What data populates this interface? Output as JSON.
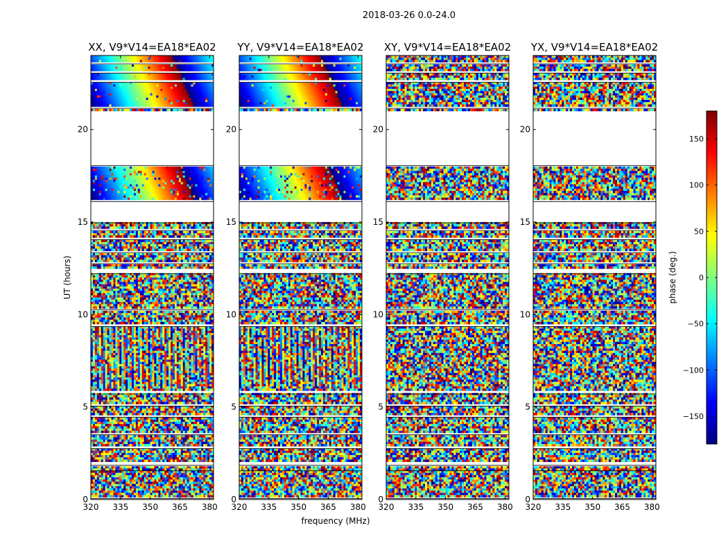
{
  "chart_data": {
    "type": "heatmap",
    "title": "2018-03-26 0.0-24.0",
    "xlabel": "frequency (MHz)",
    "ylabel": "UT (hours)",
    "xlim": [
      320,
      382
    ],
    "ylim": [
      0,
      24
    ],
    "x_ticks": [
      "320",
      "335",
      "350",
      "365",
      "380"
    ],
    "x_tick_values": [
      320,
      335,
      350,
      365,
      380
    ],
    "y_ticks": [
      "0",
      "5",
      "10",
      "15",
      "20"
    ],
    "y_tick_values": [
      0,
      5,
      10,
      15,
      20
    ],
    "colormap": "jet",
    "colorbar": {
      "label": "phase (deg.)",
      "range": [
        -180,
        180
      ],
      "ticks": [
        "-150",
        "-100",
        "-50",
        "0",
        "50",
        "100",
        "150"
      ],
      "tick_values": [
        -150,
        -100,
        -50,
        0,
        50,
        100,
        150
      ]
    },
    "flagged_ut_ranges": [
      [
        21.15,
        21.25
      ],
      [
        18.05,
        21.05
      ],
      [
        16.1,
        16.25
      ],
      [
        14.95,
        16.05
      ],
      [
        14.55,
        14.62
      ],
      [
        14.05,
        14.12
      ],
      [
        13.35,
        13.45
      ],
      [
        12.75,
        12.85
      ],
      [
        12.2,
        12.5
      ],
      [
        10.25,
        10.35
      ],
      [
        9.35,
        9.45
      ],
      [
        5.7,
        5.85
      ],
      [
        5.05,
        5.12
      ],
      [
        4.45,
        4.52
      ],
      [
        3.5,
        3.62
      ],
      [
        2.75,
        2.85
      ],
      [
        1.85,
        2.05
      ],
      [
        1.55,
        1.62
      ],
      [
        0.05,
        0.1
      ],
      [
        22.55,
        22.65
      ],
      [
        23.05,
        23.15
      ],
      [
        23.55,
        23.65
      ]
    ],
    "panels": [
      {
        "name": "XX",
        "title": "XX, V9*V14=EA18*EA02",
        "coherent_bands": [
          [
            16.25,
            18.0,
            0.85
          ],
          [
            21.25,
            23.95,
            0.95
          ],
          [
            6.0,
            9.3,
            0.6
          ]
        ]
      },
      {
        "name": "YY",
        "title": "YY, V9*V14=EA18*EA02",
        "coherent_bands": [
          [
            16.25,
            18.0,
            0.85
          ],
          [
            21.25,
            23.95,
            0.95
          ],
          [
            6.0,
            9.3,
            0.6
          ]
        ]
      },
      {
        "name": "XY",
        "title": "XY, V9*V14=EA18*EA02",
        "coherent_bands": []
      },
      {
        "name": "YX",
        "title": "YX, V9*V14=EA18*EA02",
        "coherent_bands": []
      }
    ]
  }
}
